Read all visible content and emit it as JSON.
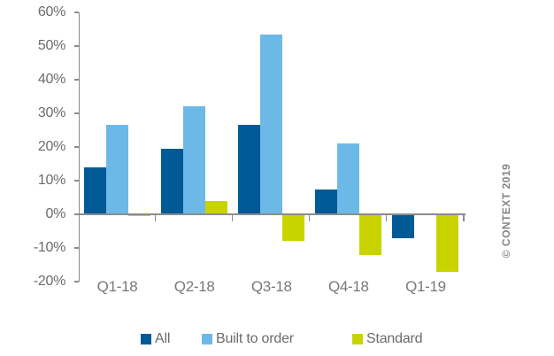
{
  "chart_data": {
    "type": "bar",
    "title": "",
    "categories": [
      "Q1-18",
      "Q2-18",
      "Q3-18",
      "Q4-18",
      "Q1-19"
    ],
    "series": [
      {
        "name": "All",
        "color": "#005a96",
        "values": [
          14,
          19.5,
          26.5,
          7.5,
          -7
        ]
      },
      {
        "name": "Built to order",
        "color": "#6cb9e8",
        "values": [
          26.5,
          32,
          53.5,
          21,
          0
        ]
      },
      {
        "name": "Standard",
        "color": "#c9d300",
        "values": [
          -0.5,
          4,
          -8,
          -12,
          -17
        ]
      }
    ],
    "ylim": [
      -20,
      60
    ],
    "ytick_step": 10,
    "ytick_labels": [
      "60%",
      "50%",
      "40%",
      "30%",
      "20%",
      "10%",
      "0%",
      "-10%",
      "-20%"
    ],
    "grid": false,
    "legend_position": "bottom",
    "axis_color": "#8c8c8c",
    "tick_label_color": "#6b6b6b"
  },
  "watermark": {
    "text": "© CONTEXT 2019"
  }
}
